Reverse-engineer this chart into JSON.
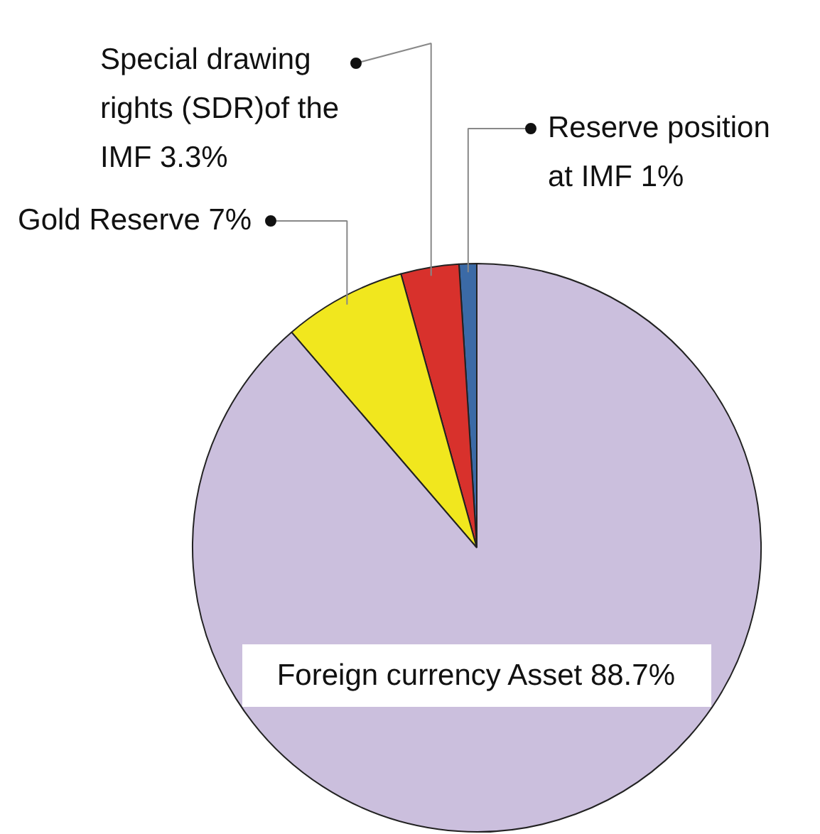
{
  "chart_data": {
    "type": "pie",
    "categories": [
      "Reserve position at IMF",
      "Special drawing rights (SDR)of the IMF",
      "Gold Reserve",
      "Foreign currency Asset"
    ],
    "values": [
      1,
      3.3,
      7,
      88.7
    ],
    "value_labels": [
      "1%",
      "3.3%",
      "7%",
      "88.7%"
    ],
    "colors": [
      "#3b6aa6",
      "#d8312c",
      "#f1e71e",
      "#cbbfdd"
    ]
  }
}
